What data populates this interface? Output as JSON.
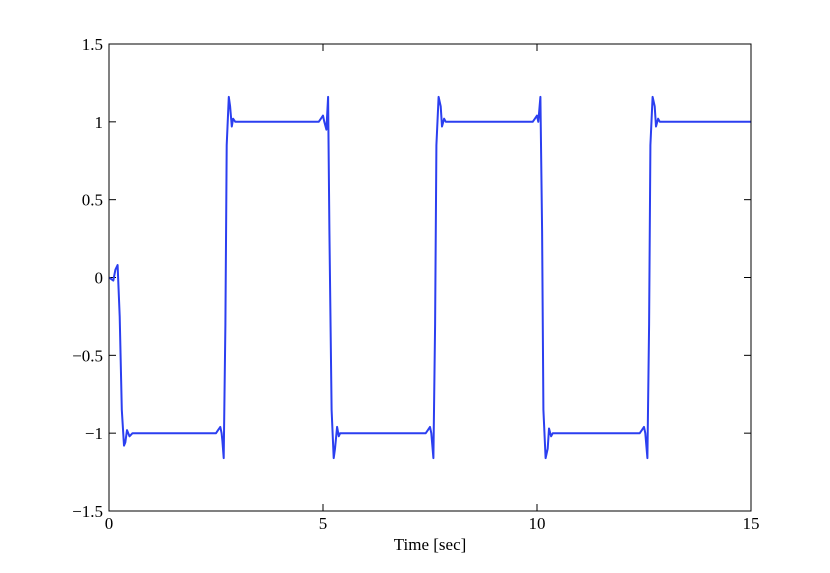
{
  "chart_data": {
    "type": "line",
    "title": "",
    "xlabel": "Time [sec]",
    "ylabel": "",
    "xlim": [
      0,
      15
    ],
    "ylim": [
      -1.5,
      1.5
    ],
    "grid": false,
    "x_ticks": [
      0,
      5,
      10,
      15
    ],
    "x_tick_labels": [
      "0",
      "5",
      "10",
      "15"
    ],
    "y_ticks": [
      1.5,
      1,
      0.5,
      0,
      -0.5,
      -1,
      -1.5
    ],
    "y_tick_labels": [
      "1.5",
      "1",
      "0.5",
      "0",
      "−0.5",
      "−1",
      "−1.5"
    ],
    "colors": {
      "series": "#2b3ff0",
      "axis": "#000000",
      "background": "#ffffff"
    },
    "series": [
      {
        "x": [
          0,
          0.1,
          0.15,
          0.2,
          0.25,
          0.3,
          0.35,
          0.38,
          0.42,
          0.48,
          0.55,
          0.62,
          0.7,
          0.8,
          1.0,
          1.5,
          2.0,
          2.5,
          2.55,
          2.6,
          2.63,
          2.65,
          2.68,
          2.72,
          2.75,
          2.8,
          2.83,
          2.87,
          2.9,
          2.95,
          3.0,
          3.05,
          3.1,
          3.18,
          3.3,
          3.6,
          4.0,
          4.5,
          4.9,
          4.95,
          5.0,
          5.03,
          5.08,
          5.12,
          5.15,
          5.2,
          5.25,
          5.28,
          5.33,
          5.37,
          5.4,
          5.45,
          5.55,
          5.63,
          5.7,
          6.0,
          7.0,
          7.4,
          7.45,
          7.5,
          7.53,
          7.58,
          7.62,
          7.65,
          7.7,
          7.75,
          7.78,
          7.83,
          7.87,
          7.9,
          7.95,
          8.05,
          8.13,
          8.2,
          8.5,
          9.5,
          9.9,
          9.95,
          10.0,
          10.03,
          10.08,
          10.12,
          10.15,
          10.2,
          10.25,
          10.28,
          10.33,
          10.37,
          10.4,
          10.45,
          10.55,
          10.63,
          10.7,
          11.0,
          12.0,
          12.4,
          12.45,
          12.5,
          12.53,
          12.58,
          12.62,
          12.65,
          12.7,
          12.75,
          12.78,
          12.83,
          12.87,
          12.9,
          12.95,
          13.05,
          13.13,
          13.2,
          13.5,
          14.0,
          15.0
        ],
        "values": [
          0.0,
          -0.02,
          0.05,
          0.08,
          -0.25,
          -0.85,
          -1.08,
          -1.06,
          -0.98,
          -1.02,
          -1.0,
          -1.0,
          -1.0,
          -1.0,
          -1.0,
          -1.0,
          -1.0,
          -1.0,
          -0.98,
          -0.96,
          -1.0,
          -1.05,
          -1.16,
          -0.3,
          0.85,
          1.16,
          1.1,
          0.97,
          1.02,
          1.0,
          1.0,
          1.0,
          1.0,
          1.0,
          1.0,
          1.0,
          1.0,
          1.0,
          1.0,
          1.02,
          1.04,
          1.0,
          0.95,
          1.16,
          0.3,
          -0.85,
          -1.16,
          -1.1,
          -0.96,
          -1.02,
          -1.0,
          -1.0,
          -1.0,
          -1.0,
          -1.0,
          -1.0,
          -1.0,
          -1.0,
          -0.98,
          -0.96,
          -1.0,
          -1.16,
          -0.3,
          0.85,
          1.16,
          1.1,
          0.97,
          1.02,
          1.0,
          1.0,
          1.0,
          1.0,
          1.0,
          1.0,
          1.0,
          1.0,
          1.0,
          1.02,
          1.04,
          1.0,
          1.16,
          0.3,
          -0.85,
          -1.16,
          -1.1,
          -0.97,
          -1.02,
          -1.0,
          -1.0,
          -1.0,
          -1.0,
          -1.0,
          -1.0,
          -1.0,
          -1.0,
          -1.0,
          -0.98,
          -0.96,
          -1.0,
          -1.16,
          -0.3,
          0.85,
          1.16,
          1.1,
          0.97,
          1.02,
          1.0,
          1.0,
          1.0,
          1.0,
          1.0,
          1.0,
          1.0,
          1.0,
          1.0
        ]
      }
    ]
  }
}
